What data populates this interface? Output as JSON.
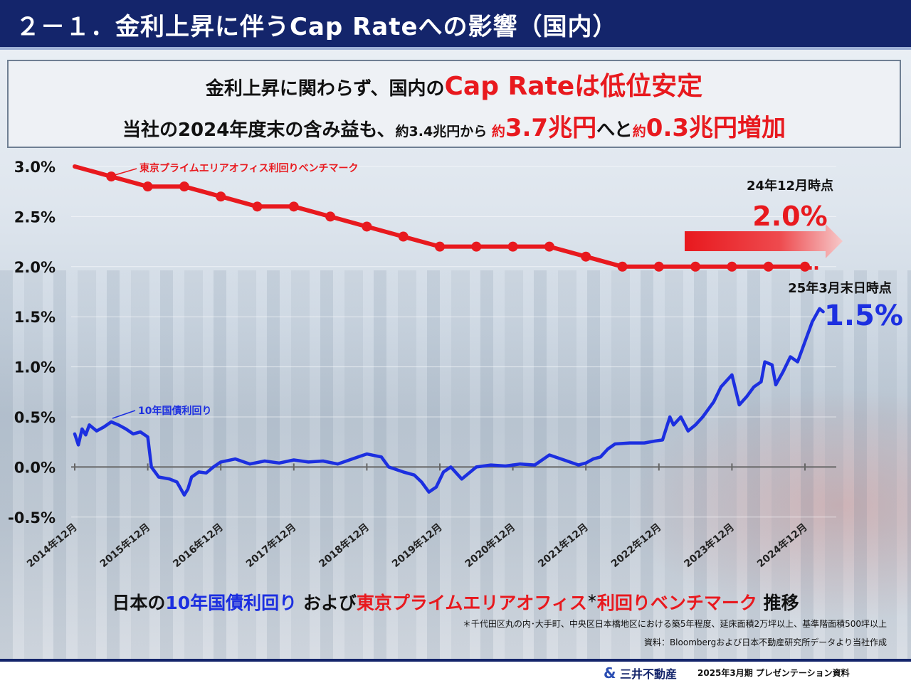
{
  "header": {
    "title": "２－１．金利上昇に伴うCap Rateへの影響（国内）"
  },
  "headline": {
    "line1_a": "金利上昇に関わらず、国内の",
    "line1_b": "Cap Rateは低位安定",
    "line2_a": "当社の2024年度末の含み益も、",
    "line2_s1": "約3.4兆円から ",
    "line2_s2": "約",
    "line2_big1": "3.7兆円",
    "line2_a2": "へと",
    "line2_s3": "約",
    "line2_big2": "0.3兆円増加"
  },
  "colors": {
    "red": "#e8191e",
    "blue": "#1c2fe0",
    "navy": "#14256b"
  },
  "chart_data": {
    "type": "line",
    "ylim": [
      -0.5,
      3.0
    ],
    "y_ticks": [
      "3.0%",
      "2.5%",
      "2.0%",
      "1.5%",
      "1.0%",
      "0.5%",
      "0.0%",
      "-0.5%"
    ],
    "categories": [
      "2014年12月",
      "2015年12月",
      "2016年12月",
      "2017年12月",
      "2018年12月",
      "2019年12月",
      "2020年12月",
      "2021年12月",
      "2022年12月",
      "2023年12月",
      "2024年12月"
    ],
    "series": [
      {
        "name": "東京プライムエリアオフィス利回りベンチマーク",
        "color": "#e8191e",
        "x": [
          0,
          0.5,
          1.0,
          1.5,
          2.0,
          2.5,
          3.0,
          3.5,
          4.0,
          4.5,
          5.0,
          5.5,
          6.0,
          6.5,
          7.0,
          7.5,
          8.0,
          8.5,
          9.0,
          9.5,
          10.0
        ],
        "values": [
          3.0,
          2.9,
          2.8,
          2.8,
          2.7,
          2.6,
          2.6,
          2.5,
          2.4,
          2.3,
          2.2,
          2.2,
          2.2,
          2.2,
          2.1,
          2.0,
          2.0,
          2.0,
          2.0,
          2.0,
          2.0
        ]
      },
      {
        "name": "10年国債利回り",
        "color": "#1c2fe0",
        "x": [
          0,
          0.05,
          0.1,
          0.15,
          0.2,
          0.3,
          0.4,
          0.5,
          0.6,
          0.7,
          0.8,
          0.9,
          1.0,
          1.05,
          1.15,
          1.3,
          1.4,
          1.5,
          1.55,
          1.6,
          1.7,
          1.8,
          1.9,
          2.0,
          2.2,
          2.4,
          2.6,
          2.8,
          3.0,
          3.2,
          3.4,
          3.6,
          3.8,
          4.0,
          4.2,
          4.3,
          4.5,
          4.65,
          4.75,
          4.85,
          4.95,
          5.05,
          5.15,
          5.3,
          5.5,
          5.7,
          5.9,
          6.1,
          6.3,
          6.5,
          6.7,
          6.9,
          7.0,
          7.1,
          7.2,
          7.3,
          7.4,
          7.6,
          7.8,
          7.95,
          8.05,
          8.15,
          8.2,
          8.3,
          8.4,
          8.5,
          8.6,
          8.7,
          8.75,
          8.85,
          9.0,
          9.1,
          9.2,
          9.3,
          9.4,
          9.45,
          9.55,
          9.6,
          9.7,
          9.8,
          9.9,
          10.0,
          10.1,
          10.2,
          10.25
        ],
        "values": [
          0.33,
          0.22,
          0.38,
          0.32,
          0.42,
          0.36,
          0.4,
          0.45,
          0.42,
          0.38,
          0.33,
          0.35,
          0.3,
          0.0,
          -0.1,
          -0.12,
          -0.15,
          -0.28,
          -0.22,
          -0.1,
          -0.05,
          -0.06,
          0.0,
          0.05,
          0.08,
          0.03,
          0.06,
          0.04,
          0.07,
          0.05,
          0.06,
          0.03,
          0.08,
          0.13,
          0.1,
          0.0,
          -0.05,
          -0.08,
          -0.15,
          -0.25,
          -0.2,
          -0.05,
          0.0,
          -0.12,
          0.0,
          0.02,
          0.01,
          0.03,
          0.02,
          0.12,
          0.07,
          0.02,
          0.04,
          0.08,
          0.1,
          0.18,
          0.23,
          0.24,
          0.24,
          0.26,
          0.27,
          0.5,
          0.42,
          0.5,
          0.36,
          0.42,
          0.5,
          0.6,
          0.65,
          0.8,
          0.92,
          0.62,
          0.7,
          0.8,
          0.85,
          1.05,
          1.02,
          0.82,
          0.95,
          1.1,
          1.05,
          1.25,
          1.45,
          1.58,
          1.55
        ]
      }
    ]
  },
  "annotations": {
    "red_label": "東京プライムエリアオフィス利回りベンチマーク",
    "blue_label": "10年国債利回り",
    "dec24_label": "24年12月時点",
    "dec24_value": "2.0%",
    "mar25_label": "25年3月末日時点",
    "mar25_value": "1.5%",
    "dots": "‥"
  },
  "caption": {
    "a": "日本の",
    "b": "10年国債利回り",
    "c": " および",
    "d": "東京プライムエリアオフィス",
    "sup": "＊",
    "e": "利回りベンチマーク",
    "f": " 推移"
  },
  "footnotes": {
    "note1": "＊千代田区丸の内･大手町、中央区日本橋地区における築5年程度、延床面積2万坪以上、基準階面積500坪以上",
    "note2": "資料：Bloombergおよび日本不動産研究所データより当社作成"
  },
  "footer": {
    "logo_symbol": "&",
    "logo_text": "三井不動産",
    "text": "2025年3月期 プレゼンテーション資料"
  }
}
